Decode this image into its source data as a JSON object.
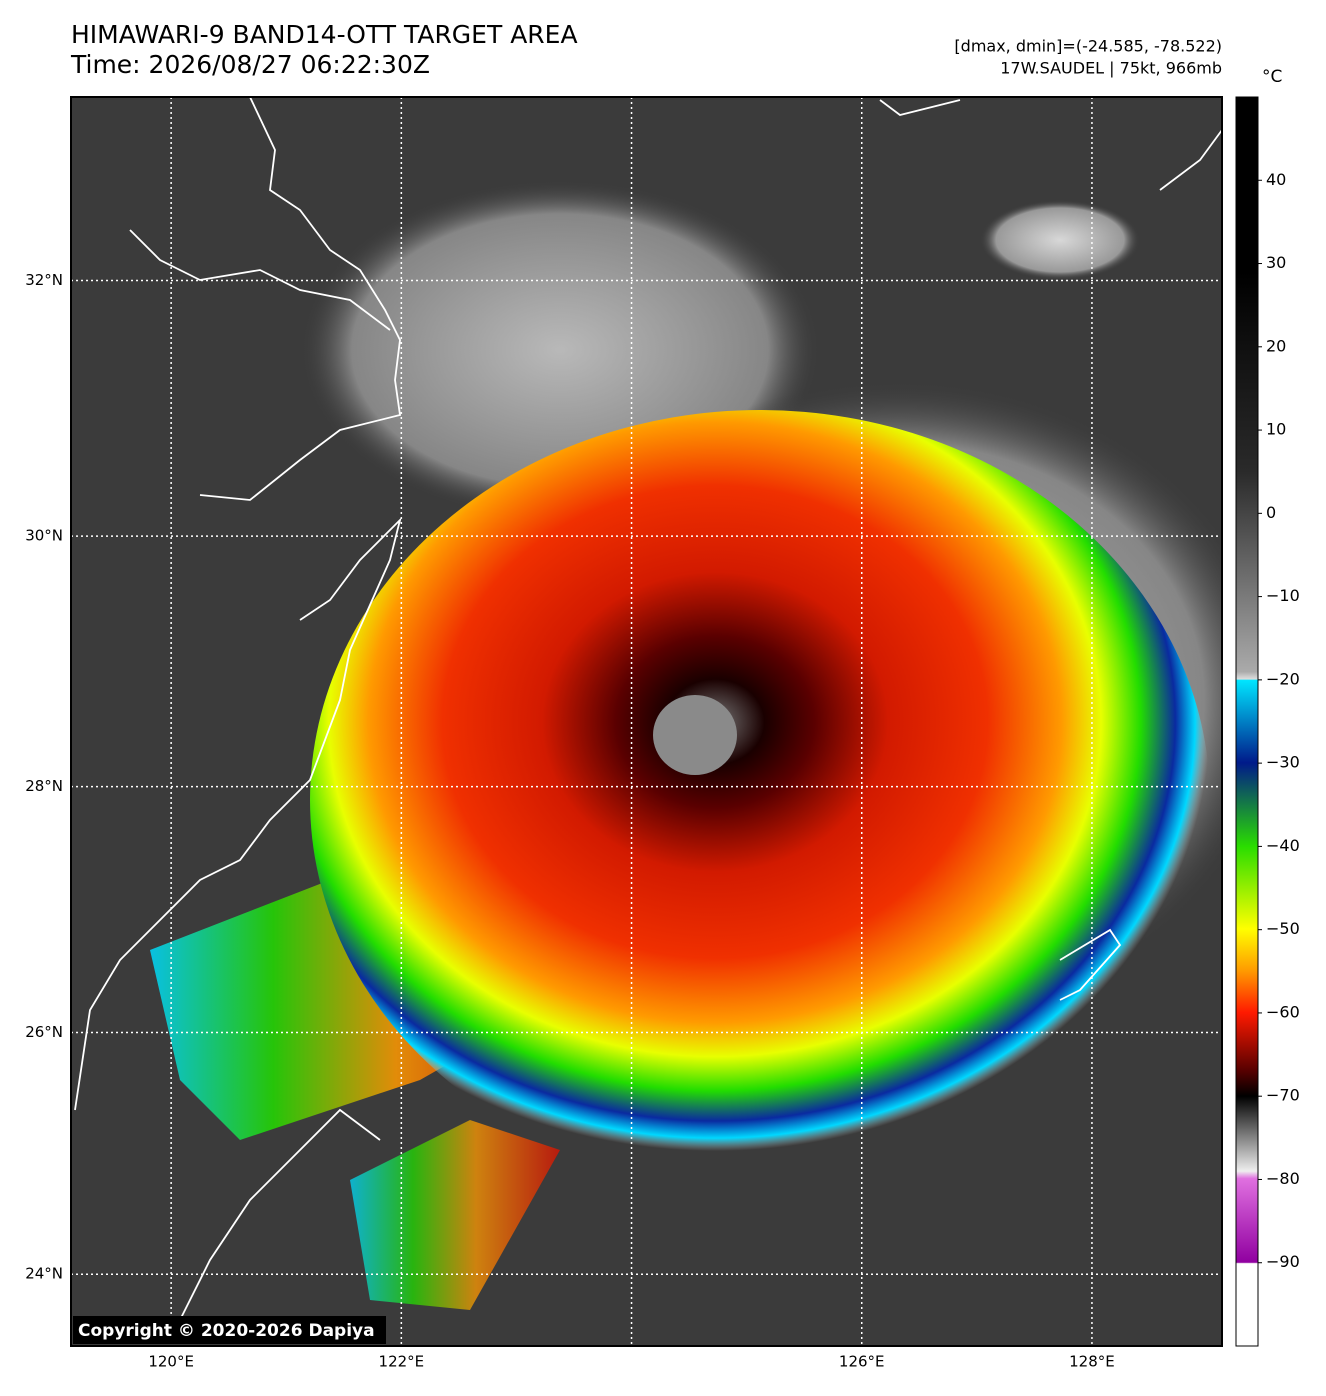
{
  "map": {
    "title": "HIMAWARI-9 BAND14-OTT TARGET AREA",
    "subtitle": "Time: 2026/08/27 06:22:30Z",
    "stats": "[dmax, dmin]=(-24.585, -78.522)",
    "storm": "17W.SAUDEL | 75kt, 966mb",
    "copyright": "Copyright © 2020-2026 Dapiya",
    "xlim": [
      119.13,
      129.13
    ],
    "ylim": [
      23.4,
      33.41
    ],
    "xticks": [
      {
        "value": 120,
        "label": "120°E"
      },
      {
        "value": 122,
        "label": "122°E"
      },
      {
        "value": 124,
        "label": null
      },
      {
        "value": 126,
        "label": "126°E"
      },
      {
        "value": 128,
        "label": "128°E"
      }
    ],
    "yticks": [
      {
        "value": 24,
        "label": "24°N"
      },
      {
        "value": 26,
        "label": "26°N"
      },
      {
        "value": 28,
        "label": "28°N"
      },
      {
        "value": 30,
        "label": "30°N"
      },
      {
        "value": 32,
        "label": "32°N"
      }
    ],
    "grid": true,
    "colorbar": {
      "unit": "°C",
      "lim": [
        -100,
        50
      ],
      "ticks": [
        40,
        30,
        20,
        10,
        0,
        {
          "value": -10,
          "label": "−10"
        },
        {
          "value": -20,
          "label": "−20"
        },
        {
          "value": -30,
          "label": "−30"
        },
        {
          "value": -40,
          "label": "−40"
        },
        {
          "value": -50,
          "label": "−50"
        },
        {
          "value": -60,
          "label": "−60"
        },
        {
          "value": -70,
          "label": "−70"
        },
        {
          "value": -80,
          "label": "−80"
        },
        {
          "value": -90,
          "label": "−90"
        }
      ]
    }
  }
}
